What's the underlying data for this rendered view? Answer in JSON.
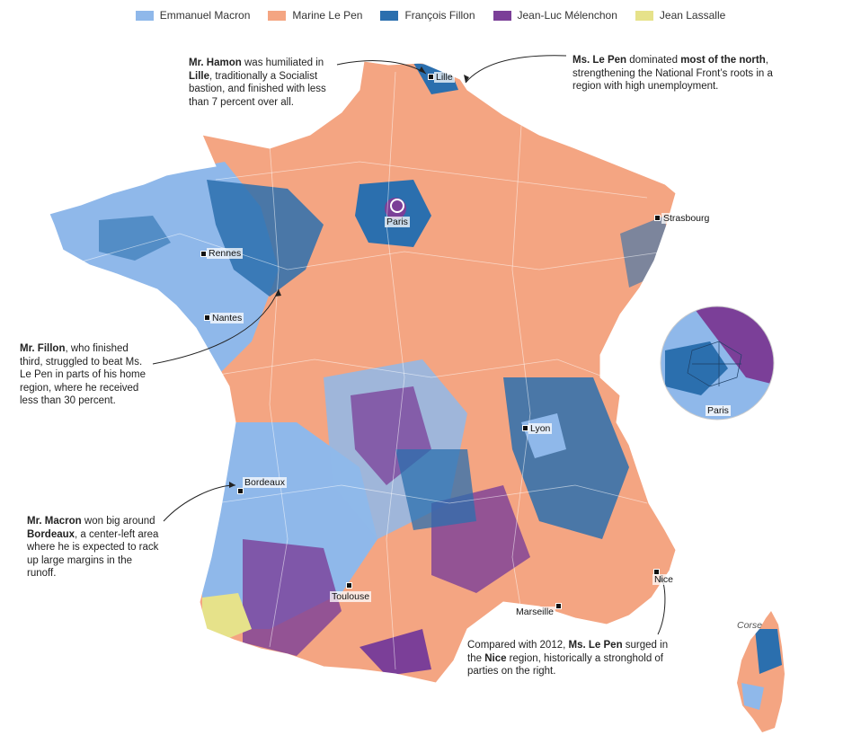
{
  "legend": [
    {
      "label": "Emmanuel Macron",
      "color": "#8fb8ea"
    },
    {
      "label": "Marine Le Pen",
      "color": "#f4a582"
    },
    {
      "label": "François Fillon",
      "color": "#2b6fae"
    },
    {
      "label": "Jean-Luc Mélenchon",
      "color": "#7b3f98"
    },
    {
      "label": "Jean Lassalle",
      "color": "#e6e28a"
    }
  ],
  "annotations": {
    "hamon": {
      "b1": "Mr. Hamon",
      "t1": " was humiliated in ",
      "b2": "Lille",
      "t2": ", traditionally a Socialist bastion, and finished with less than 7 percent over all."
    },
    "lepen_north": {
      "b1": "Ms. Le Pen",
      "t1": " dominated ",
      "b2": "most of the north",
      "t2": ", strengthening the National Front’s roots in a region with high unemployment."
    },
    "fillon": {
      "b1": "Mr. Fillon",
      "t1": ", who finished third, struggled to beat Ms. Le Pen in parts of his home region, where he received less than 30 percent."
    },
    "macron": {
      "b1": "Mr. Macron",
      "t1": " won big around ",
      "b2": "Bordeaux",
      "t2": ", a center-left area where he is expected to rack up large margins in the runoff."
    },
    "lepen_nice": {
      "t0": "Compared with 2012, ",
      "b1": "Ms. Le Pen",
      "t1": " surged in the ",
      "b2": "Nice",
      "t2": " region, historically a stronghold of parties on the right."
    }
  },
  "cities": {
    "lille": "Lille",
    "paris": "Paris",
    "strasbourg": "Strasbourg",
    "rennes": "Rennes",
    "nantes": "Nantes",
    "lyon": "Lyon",
    "bordeaux": "Bordeaux",
    "toulouse": "Toulouse",
    "marseille": "Marseille",
    "nice": "Nice",
    "paris_inset": "Paris",
    "corse": "Corse"
  }
}
